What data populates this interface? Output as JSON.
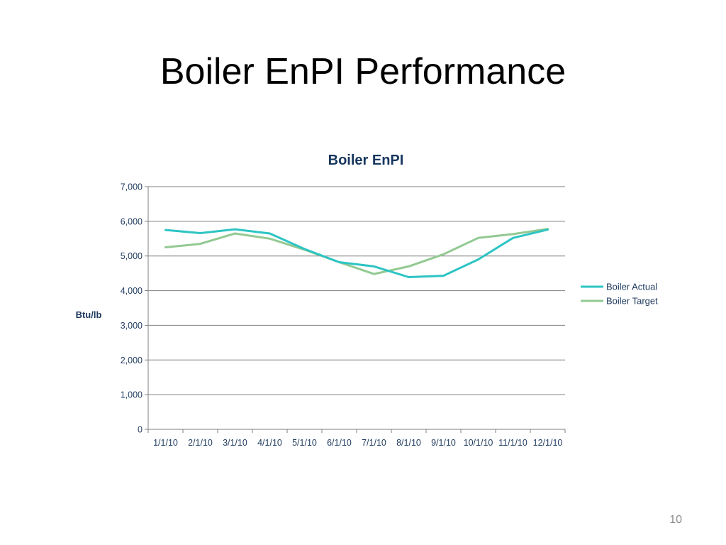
{
  "slide": {
    "title": "Boiler EnPI Performance",
    "page_number": "10"
  },
  "colors": {
    "text_dark": "#1f3a5f",
    "title": "#17375e",
    "grid": "#7f7f7f",
    "actual": "#2ec4c4",
    "target": "#93c993"
  },
  "chart_data": {
    "type": "line",
    "title": "Boiler EnPI",
    "xlabel": "",
    "ylabel": "Btu/lb",
    "categories": [
      "1/1/10",
      "2/1/10",
      "3/1/10",
      "4/1/10",
      "5/1/10",
      "6/1/10",
      "7/1/10",
      "8/1/10",
      "9/1/10",
      "10/1/10",
      "11/1/10",
      "12/1/10"
    ],
    "ylim": [
      0,
      7000
    ],
    "ytick_values": [
      0,
      1000,
      2000,
      3000,
      4000,
      5000,
      6000,
      7000
    ],
    "ytick_labels": [
      "0",
      "1,000",
      "2,000",
      "3,000",
      "4,000",
      "5,000",
      "6,000",
      "7,000"
    ],
    "grid": true,
    "legend_position": "right",
    "series": [
      {
        "name": "Boiler Actual",
        "color": "#2ec4c4",
        "values": [
          5750,
          5660,
          5770,
          5650,
          5200,
          4820,
          4700,
          4390,
          4430,
          4900,
          5520,
          5760
        ]
      },
      {
        "name": "Boiler Target",
        "color": "#93c993",
        "values": [
          5250,
          5350,
          5650,
          5500,
          5180,
          4820,
          4480,
          4700,
          5050,
          5520,
          5630,
          5780
        ]
      }
    ]
  }
}
